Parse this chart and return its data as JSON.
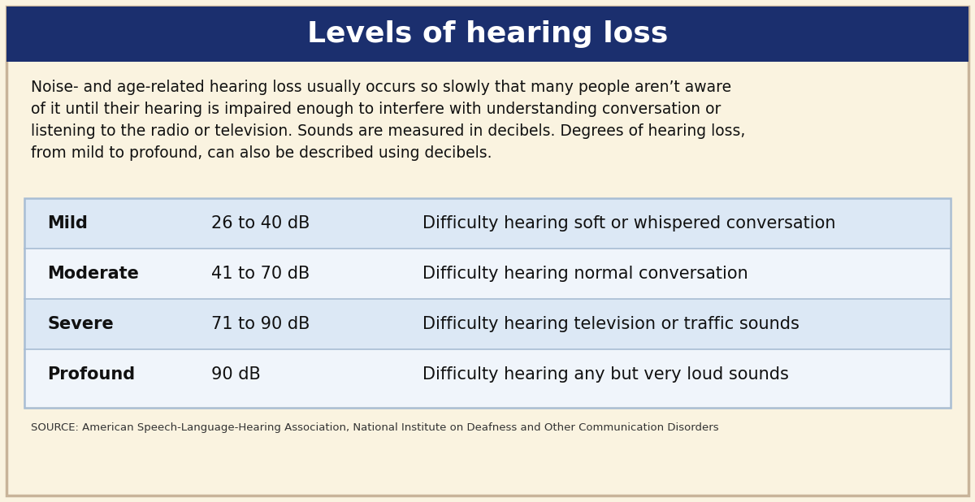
{
  "title": "Levels of hearing loss",
  "title_bg_color": "#1b2f6e",
  "title_text_color": "#ffffff",
  "bg_color": "#faf3e0",
  "outer_border_color": "#c8b49a",
  "table_border_color": "#a8bdd4",
  "table_row_bg_blue": "#dce8f5",
  "table_row_bg_white": "#f0f5fb",
  "intro_lines": [
    "Noise- and age-related hearing loss usually occurs so slowly that many people aren’t aware",
    "of it until their hearing is impaired enough to interfere with understanding conversation or",
    "listening to the radio or television. Sounds are measured in decibels. Degrees of hearing loss,",
    "from mild to profound, can also be described using decibels."
  ],
  "source_text": "SOURCE: American Speech-Language-Hearing Association, National Institute on Deafness and Other Communication Disorders",
  "rows": [
    {
      "level": "Mild",
      "range": "26 to 40 dB",
      "description": "Difficulty hearing soft or whispered conversation",
      "bg": "blue"
    },
    {
      "level": "Moderate",
      "range": "41 to 70 dB",
      "description": "Difficulty hearing normal conversation",
      "bg": "white"
    },
    {
      "level": "Severe",
      "range": "71 to 90 dB",
      "description": "Difficulty hearing television or traffic sounds",
      "bg": "blue"
    },
    {
      "level": "Profound",
      "range": "90 dB",
      "description": "Difficulty hearing any but very loud sounds",
      "bg": "white"
    }
  ]
}
